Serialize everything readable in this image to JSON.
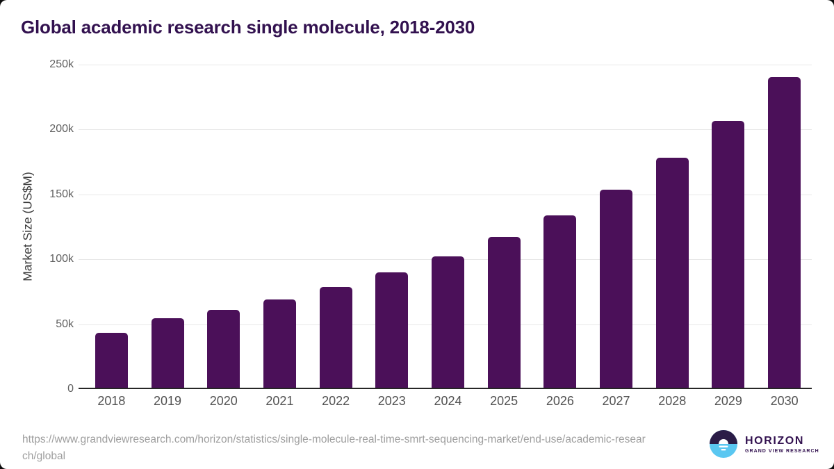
{
  "chart_data": {
    "type": "bar",
    "title": "Global academic research single molecule, 2018-2030",
    "xlabel": "",
    "ylabel": "Market Size (US$M)",
    "categories": [
      "2018",
      "2019",
      "2020",
      "2021",
      "2022",
      "2023",
      "2024",
      "2025",
      "2026",
      "2027",
      "2028",
      "2029",
      "2030"
    ],
    "values": [
      43200,
      54800,
      61200,
      69300,
      78900,
      90200,
      102100,
      117000,
      133900,
      153900,
      178400,
      206800,
      240400
    ],
    "ylim": [
      0,
      250000
    ],
    "yticks": [
      {
        "value": 0,
        "label": "0"
      },
      {
        "value": 50000,
        "label": "50k"
      },
      {
        "value": 100000,
        "label": "100k"
      },
      {
        "value": 150000,
        "label": "150k"
      },
      {
        "value": 200000,
        "label": "200k"
      },
      {
        "value": 250000,
        "label": "250k"
      }
    ],
    "grid": "horizontal gridlines on",
    "legend": "none",
    "bar_color": "#4b1059"
  },
  "theme": {
    "title_color": "#32114f",
    "bar_color": "#4b1059",
    "grid_color": "#e8e8e8",
    "axis_line_color": "#262626",
    "logo_dark": "#2b1c47",
    "logo_blue": "#5ac7f1"
  },
  "footer": {
    "source_lines": [
      "https://www.grandviewresearch.com/horizon/statistics/single-molecule-real-time-smrt-sequencing-market/end-use/academic-resear",
      "ch/global"
    ],
    "logo": {
      "brand": "HORIZON",
      "subbrand": "GRAND VIEW RESEARCH"
    }
  }
}
